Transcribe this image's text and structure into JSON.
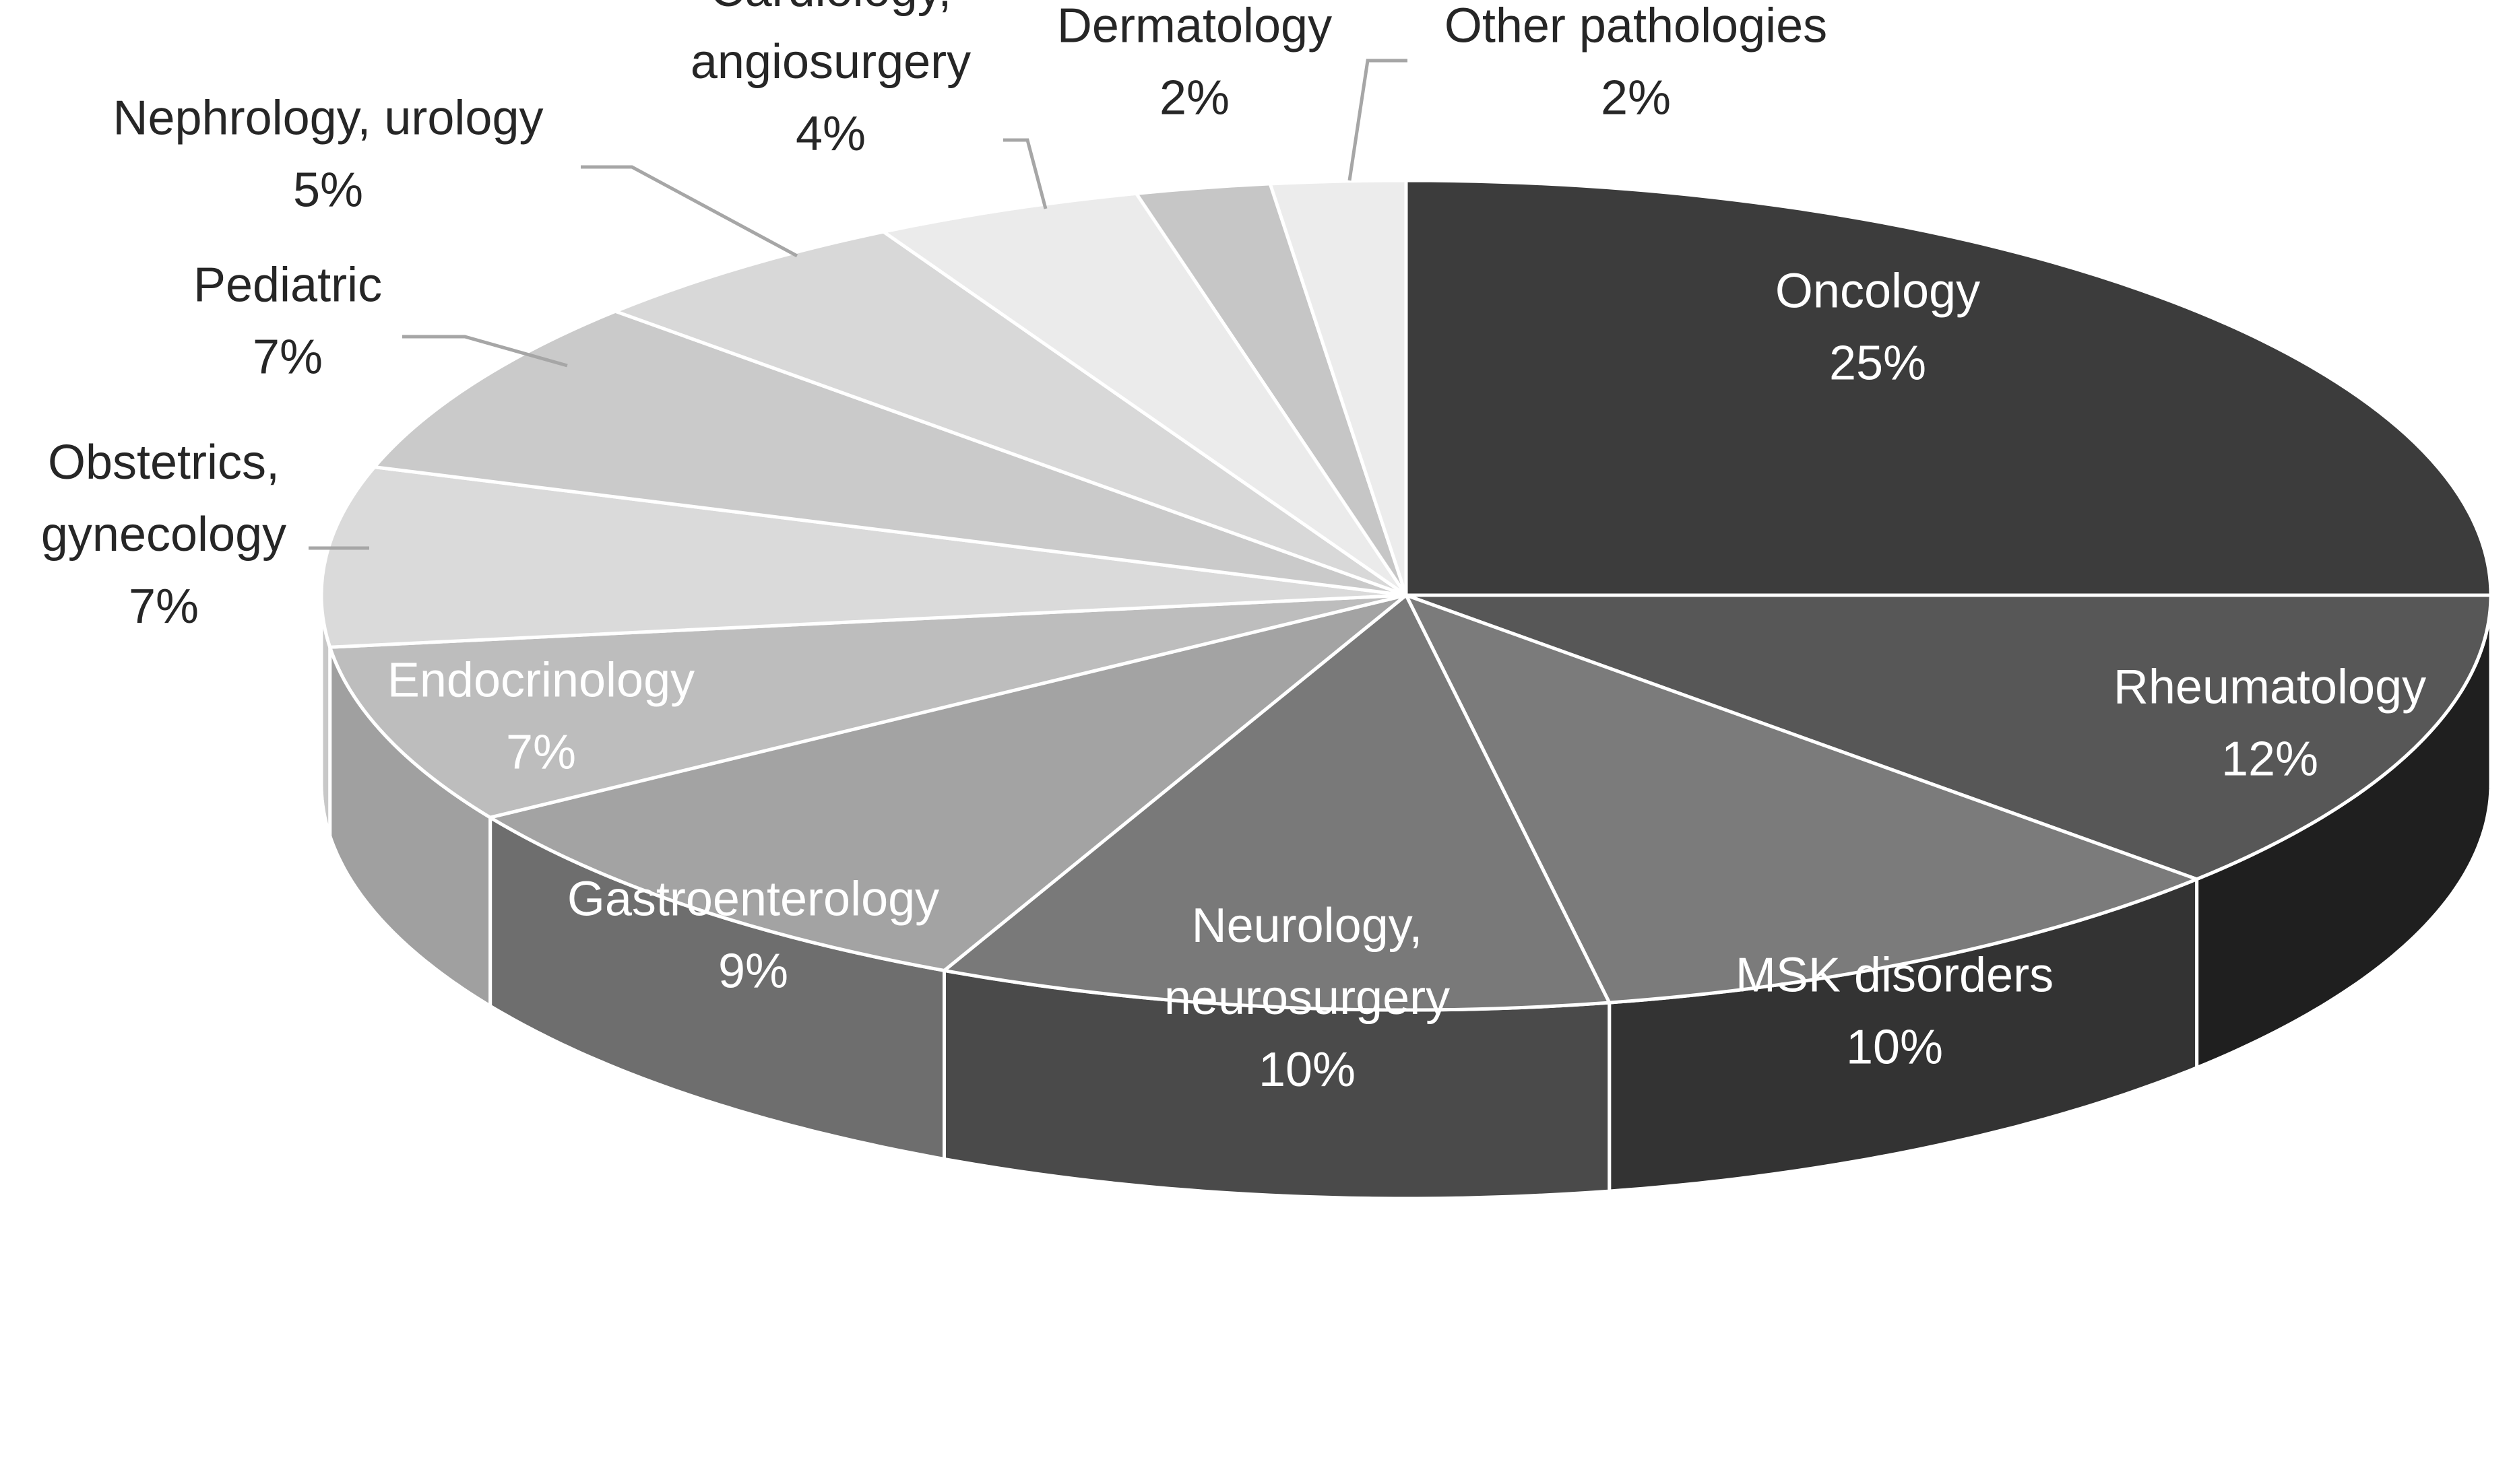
{
  "chart_data": {
    "type": "pie",
    "style": "3d-exploded-none",
    "title": "",
    "slices": [
      {
        "label": "Oncology",
        "value": 25,
        "display": "25%",
        "color": "#3c3c3c",
        "side_color": "#2b2b2b",
        "label_color": "#ffffff",
        "label_placement": "inside"
      },
      {
        "label": "Rheumatology",
        "value": 12,
        "display": "12%",
        "color": "#575757",
        "side_color": "#1f1f1f",
        "label_color": "#ffffff",
        "label_placement": "inside"
      },
      {
        "label": "MSK disorders",
        "value": 10,
        "display": "10%",
        "color": "#7b7b7b",
        "side_color": "#333333",
        "label_color": "#ffffff",
        "label_placement": "inside"
      },
      {
        "label": "Neurology, neurosurgery",
        "lines": [
          "Neurology,",
          "neurosurgery"
        ],
        "value": 10,
        "display": "10%",
        "color": "#797979",
        "side_color": "#4a4a4a",
        "label_color": "#ffffff",
        "label_placement": "inside"
      },
      {
        "label": "Gastroenterology",
        "value": 9,
        "display": "9%",
        "color": "#a3a3a3",
        "side_color": "#6e6e6e",
        "label_color": "#ffffff",
        "label_placement": "inside"
      },
      {
        "label": "Endocrinology",
        "value": 7,
        "display": "7%",
        "color": "#bdbdbd",
        "side_color": "#a0a0a0",
        "label_color": "#ffffff",
        "label_placement": "inside"
      },
      {
        "label": "Obstetrics, gynecology",
        "lines": [
          "Obstetrics,",
          "gynecology"
        ],
        "value": 7,
        "display": "7%",
        "color": "#dadada",
        "side_color": "#c8c8c8",
        "label_color": "#262626",
        "label_placement": "outside"
      },
      {
        "label": "Pediatric",
        "value": 7,
        "display": "7%",
        "color": "#cacaca",
        "side_color": "#b8b8b8",
        "label_color": "#262626",
        "label_placement": "outside"
      },
      {
        "label": "Nephrology, urology",
        "value": 5,
        "display": "5%",
        "color": "#d8d8d8",
        "side_color": "#c6c6c6",
        "label_color": "#262626",
        "label_placement": "outside"
      },
      {
        "label": "Cardiology, angiosurgery",
        "lines": [
          "Cardiology,",
          "angiosurgery"
        ],
        "value": 4,
        "display": "4%",
        "color": "#ebebeb",
        "side_color": "#d9d9d9",
        "label_color": "#262626",
        "label_placement": "outside"
      },
      {
        "label": "Dermatology",
        "value": 2,
        "display": "2%",
        "color": "#c6c6c6",
        "side_color": "#b4b4b4",
        "label_color": "#262626",
        "label_placement": "outside"
      },
      {
        "label": "Other pathologies",
        "value": 2,
        "display": "2%",
        "color": "#ececec",
        "side_color": "#dadada",
        "label_color": "#262626",
        "label_placement": "outside"
      }
    ]
  }
}
